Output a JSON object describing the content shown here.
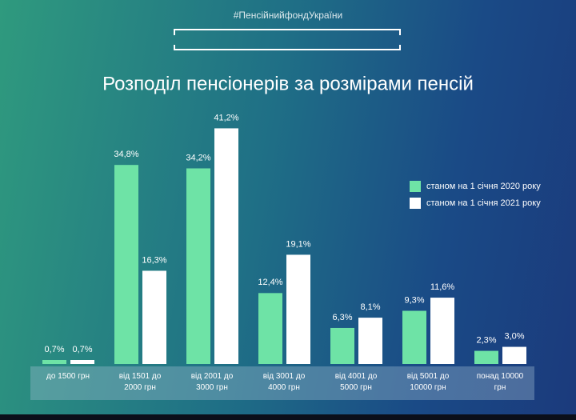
{
  "chart_data": {
    "type": "bar",
    "header": "#ПенсійнийфондУкраїни",
    "title": "Розподіл пенсіонерів за розмірами пенсій",
    "categories": [
      "до 1500 грн",
      "від 1501 до 2000 грн",
      "від 2001 до 3000 грн",
      "від 3001 до 4000 грн",
      "від 4001 до 5000 грн",
      "від 5001 до 10000 грн",
      "понад 10000 грн"
    ],
    "series": [
      {
        "name": "станом на 1 січня 2020 року",
        "color": "#6ee3a6",
        "values": [
          0.7,
          34.8,
          34.2,
          12.4,
          6.3,
          9.3,
          2.3
        ],
        "value_labels": [
          "0,7%",
          "34,8%",
          "34,2%",
          "12,4%",
          "6,3%",
          "9,3%",
          "2,3%"
        ]
      },
      {
        "name": "станом на 1 січня 2021 року",
        "color": "#ffffff",
        "values": [
          0.7,
          16.3,
          41.2,
          19.1,
          8.1,
          11.6,
          3.0
        ],
        "value_labels": [
          "0,7%",
          "16,3%",
          "41,2%",
          "19,1%",
          "8,1%",
          "11,6%",
          "3,0%"
        ]
      }
    ]
  }
}
